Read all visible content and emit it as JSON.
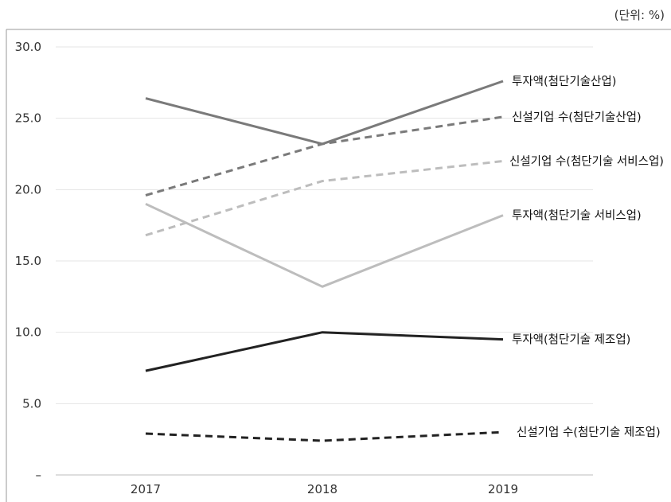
{
  "unit_label": "(단위: %)",
  "chart_data": {
    "type": "line",
    "title": "",
    "xlabel": "",
    "ylabel": "",
    "categories": [
      "2017",
      "2018",
      "2019"
    ],
    "ylim": [
      0,
      30
    ],
    "yticks": [
      "–",
      "5.0",
      "10.0",
      "15.0",
      "20.0",
      "25.0",
      "30.0"
    ],
    "ytick_values": [
      0,
      5,
      10,
      15,
      20,
      25,
      30
    ],
    "grid": true,
    "legend": "inline labels at right end of lines",
    "series": [
      {
        "name": "투자액(첨단기술산업)",
        "values": [
          26.4,
          23.2,
          27.6
        ],
        "color": "#7a7a7a",
        "dash": "solid"
      },
      {
        "name": "신설기업 수(첨단기술산업)",
        "values": [
          19.6,
          23.2,
          25.1
        ],
        "color": "#7a7a7a",
        "dash": "dashed"
      },
      {
        "name": "신설기업 수(첨단기술 서비스업)",
        "values": [
          16.8,
          20.6,
          22.0
        ],
        "color": "#bdbdbd",
        "dash": "dashed"
      },
      {
        "name": "투자액(첨단기술 서비스업)",
        "values": [
          19.0,
          13.2,
          18.2
        ],
        "color": "#bdbdbd",
        "dash": "solid"
      },
      {
        "name": "투자액(첨단기술 제조업)",
        "values": [
          7.3,
          10.0,
          9.5
        ],
        "color": "#222222",
        "dash": "solid"
      },
      {
        "name": "신설기업 수(첨단기술 제조업)",
        "values": [
          2.9,
          2.4,
          3.0
        ],
        "color": "#222222",
        "dash": "dashed"
      }
    ]
  }
}
